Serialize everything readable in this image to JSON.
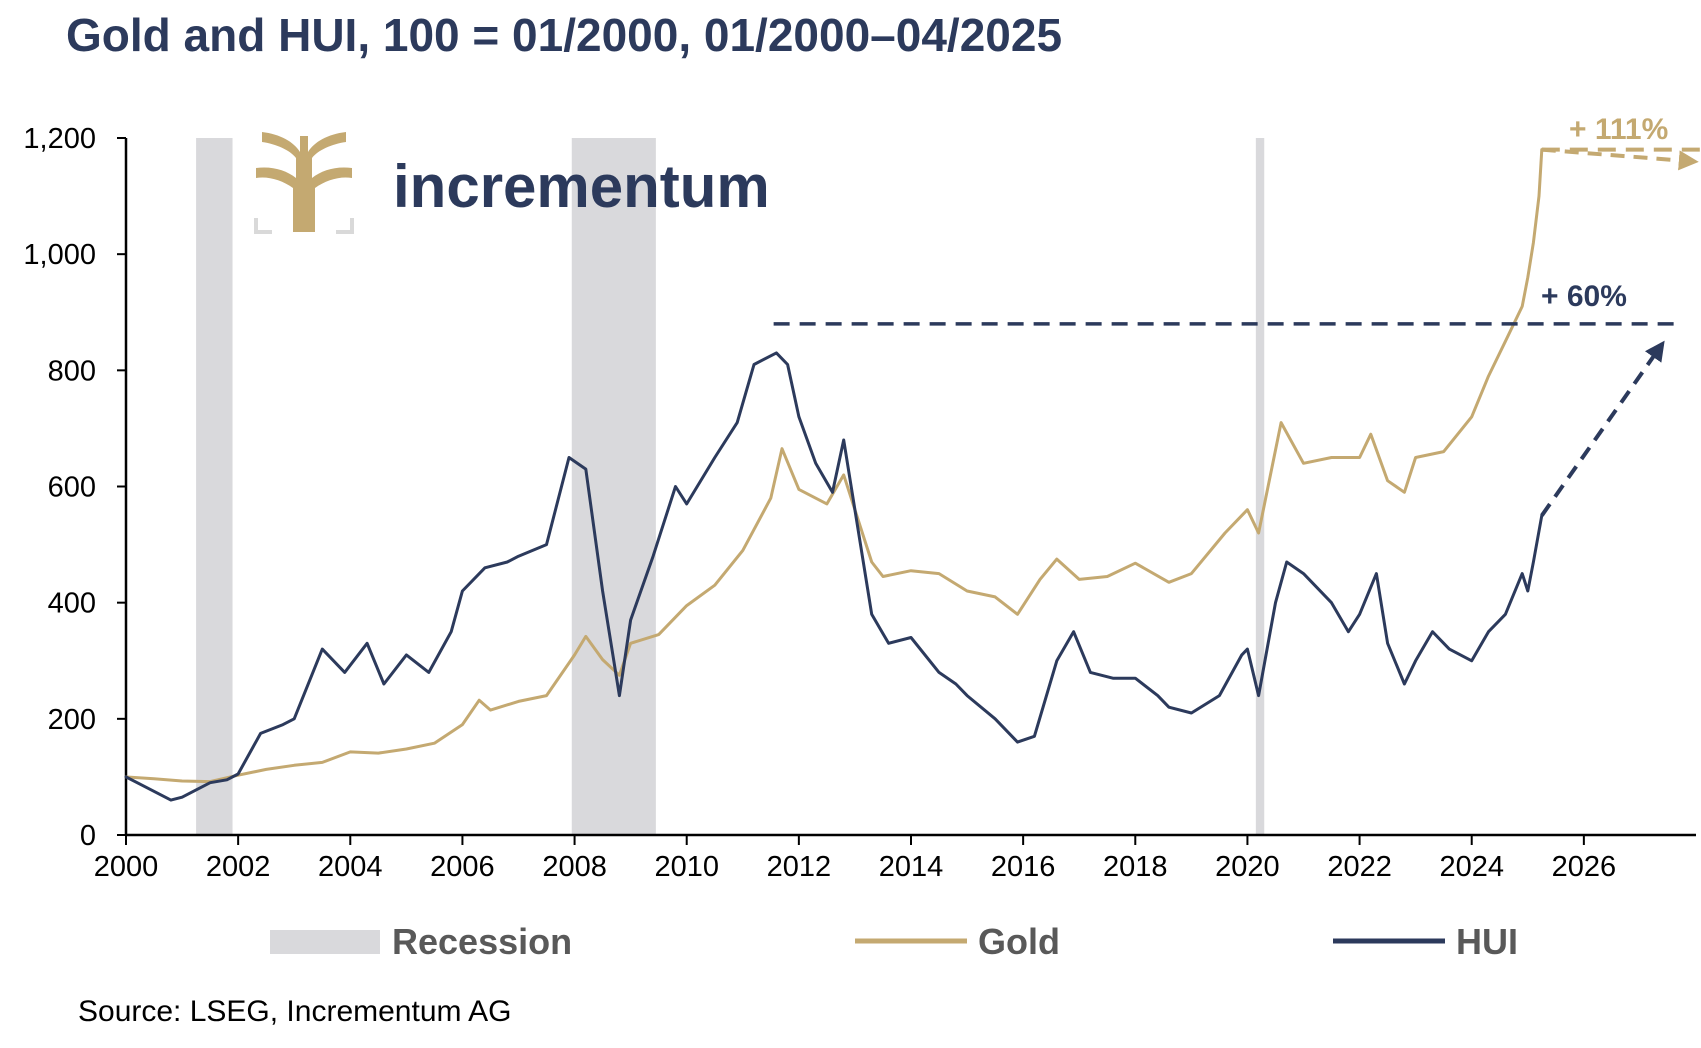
{
  "title": "Gold and HUI, 100 = 01/2000, 01/2000–04/2025",
  "source": "Source: LSEG, Incrementum AG",
  "brand": {
    "name": "incrementum",
    "logo": "tree-logo-icon"
  },
  "colors": {
    "gold": "#c4a971",
    "hui": "#2c3a5c",
    "recession": "#d9d9dc",
    "axis": "#000000",
    "title": "#2c3a5c"
  },
  "annotations": {
    "gold_gain": "+ 111%",
    "hui_gain": "+ 60%"
  },
  "chart_data": {
    "type": "line",
    "title": "Gold and HUI, 100 = 01/2000, 01/2000–04/2025",
    "xlabel": "",
    "ylabel": "",
    "xlim": [
      2000,
      2028
    ],
    "ylim": [
      0,
      1200
    ],
    "x_ticks": [
      2000,
      2002,
      2004,
      2006,
      2008,
      2010,
      2012,
      2014,
      2016,
      2018,
      2020,
      2022,
      2024,
      2026
    ],
    "y_ticks": [
      0,
      200,
      400,
      600,
      800,
      1000,
      1200
    ],
    "y_tick_labels": [
      "0",
      "200",
      "400",
      "600",
      "800",
      "1,000",
      "1,200"
    ],
    "grid": false,
    "legend": {
      "placement": "bottom",
      "entries": [
        {
          "label": "Recession",
          "kind": "band"
        },
        {
          "label": "Gold",
          "kind": "line"
        },
        {
          "label": "HUI",
          "kind": "line"
        }
      ]
    },
    "recessions": [
      [
        2001.25,
        2001.9
      ],
      [
        2007.95,
        2009.45
      ],
      [
        2020.15,
        2020.3
      ]
    ],
    "series": [
      {
        "name": "Gold",
        "x": [
          2000,
          2000.5,
          2001,
          2001.5,
          2002,
          2002.5,
          2003,
          2003.5,
          2004,
          2004.5,
          2005,
          2005.5,
          2006,
          2006.3,
          2006.5,
          2007,
          2007.5,
          2008,
          2008.2,
          2008.5,
          2008.8,
          2009,
          2009.5,
          2010,
          2010.5,
          2011,
          2011.5,
          2011.7,
          2012,
          2012.5,
          2012.8,
          2013,
          2013.3,
          2013.5,
          2014,
          2014.5,
          2015,
          2015.5,
          2015.9,
          2016.3,
          2016.6,
          2017,
          2017.5,
          2018,
          2018.6,
          2019,
          2019.6,
          2020,
          2020.2,
          2020.6,
          2021,
          2021.5,
          2022,
          2022.2,
          2022.5,
          2022.8,
          2023,
          2023.5,
          2024,
          2024.3,
          2024.6,
          2024.9,
          2025,
          2025.1,
          2025.2,
          2025.25
        ],
        "values": [
          100,
          97,
          93,
          92,
          103,
          113,
          120,
          125,
          143,
          141,
          148,
          158,
          190,
          232,
          215,
          230,
          240,
          310,
          342,
          302,
          275,
          330,
          345,
          395,
          430,
          490,
          580,
          665,
          595,
          570,
          620,
          560,
          470,
          445,
          455,
          450,
          420,
          410,
          380,
          440,
          475,
          440,
          445,
          468,
          435,
          450,
          520,
          560,
          520,
          710,
          640,
          650,
          650,
          690,
          610,
          590,
          650,
          660,
          720,
          790,
          850,
          910,
          960,
          1020,
          1100,
          1180
        ]
      },
      {
        "name": "HUI",
        "x": [
          2000,
          2000.3,
          2000.8,
          2001,
          2001.5,
          2001.8,
          2002,
          2002.4,
          2002.8,
          2003,
          2003.5,
          2003.9,
          2004.3,
          2004.6,
          2005,
          2005.4,
          2005.8,
          2006,
          2006.4,
          2006.8,
          2007,
          2007.5,
          2007.9,
          2008.2,
          2008.5,
          2008.8,
          2009,
          2009.4,
          2009.8,
          2010,
          2010.5,
          2010.9,
          2011.2,
          2011.6,
          2011.8,
          2012,
          2012.3,
          2012.6,
          2012.8,
          2013,
          2013.3,
          2013.6,
          2014,
          2014.5,
          2014.8,
          2015,
          2015.5,
          2015.9,
          2016.2,
          2016.6,
          2016.9,
          2017.2,
          2017.6,
          2018,
          2018.4,
          2018.6,
          2019,
          2019.5,
          2019.9,
          2020,
          2020.2,
          2020.5,
          2020.7,
          2021,
          2021.5,
          2021.8,
          2022,
          2022.3,
          2022.5,
          2022.8,
          2023,
          2023.3,
          2023.6,
          2024,
          2024.3,
          2024.6,
          2024.9,
          2025,
          2025.1,
          2025.25
        ],
        "values": [
          100,
          85,
          60,
          65,
          90,
          95,
          105,
          175,
          190,
          200,
          320,
          280,
          330,
          260,
          310,
          280,
          350,
          420,
          460,
          470,
          480,
          500,
          650,
          630,
          420,
          240,
          370,
          480,
          600,
          570,
          650,
          710,
          810,
          830,
          810,
          720,
          640,
          590,
          680,
          560,
          380,
          330,
          340,
          280,
          260,
          240,
          200,
          160,
          170,
          300,
          350,
          280,
          270,
          270,
          240,
          220,
          210,
          240,
          310,
          320,
          240,
          400,
          470,
          450,
          400,
          350,
          380,
          450,
          330,
          260,
          300,
          350,
          320,
          300,
          350,
          380,
          450,
          420,
          470,
          550
        ]
      }
    ],
    "projections": [
      {
        "name": "Gold",
        "label": "+ 111%",
        "level": 1180,
        "from_x": 2025.25,
        "to_x": 2027.8
      },
      {
        "name": "HUI",
        "label": "+ 60%",
        "level": 880,
        "from_x": 2011.55,
        "to_x": 2027.4
      }
    ]
  }
}
